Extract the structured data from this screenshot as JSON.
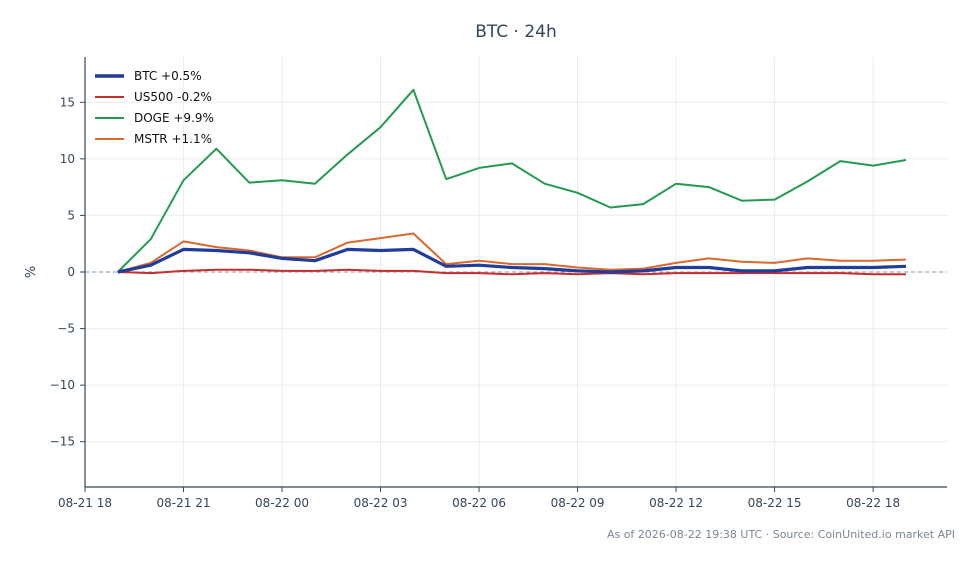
{
  "chart_data": {
    "type": "line",
    "title": "BTC · 24h",
    "xlabel": "",
    "ylabel": "%",
    "xlim": [
      "2026-08-21 18:00",
      "2026-08-22 20:15"
    ],
    "ylim": [
      -19,
      19
    ],
    "x_ticks": [
      "08-21 18",
      "08-21 21",
      "08-22 00",
      "08-22 03",
      "08-22 06",
      "08-22 09",
      "08-22 12",
      "08-22 15",
      "08-22 18"
    ],
    "y_ticks": [
      -15,
      -10,
      -5,
      0,
      5,
      10,
      15
    ],
    "grid": true,
    "zero_line": true,
    "legend_position": "top-left",
    "x": [
      "2026-08-21 19:00",
      "2026-08-21 20:00",
      "2026-08-21 21:00",
      "2026-08-21 22:00",
      "2026-08-21 23:00",
      "2026-08-22 00:00",
      "2026-08-22 01:00",
      "2026-08-22 02:00",
      "2026-08-22 03:00",
      "2026-08-22 04:00",
      "2026-08-22 05:00",
      "2026-08-22 06:00",
      "2026-08-22 07:00",
      "2026-08-22 08:00",
      "2026-08-22 09:00",
      "2026-08-22 10:00",
      "2026-08-22 11:00",
      "2026-08-22 12:00",
      "2026-08-22 13:00",
      "2026-08-22 14:00",
      "2026-08-22 15:00",
      "2026-08-22 16:00",
      "2026-08-22 17:00",
      "2026-08-22 18:00",
      "2026-08-22 19:00"
    ],
    "series": [
      {
        "name": "BTC +0.5%",
        "color": "#1f3d99",
        "values": [
          0.0,
          0.6,
          2.0,
          1.9,
          1.7,
          1.2,
          1.0,
          2.0,
          1.9,
          2.0,
          0.5,
          0.6,
          0.4,
          0.3,
          0.1,
          0.0,
          0.1,
          0.4,
          0.4,
          0.1,
          0.1,
          0.4,
          0.4,
          0.4,
          0.5
        ]
      },
      {
        "name": "US500 -0.2%",
        "color": "#c62d2d",
        "values": [
          0.0,
          -0.1,
          0.1,
          0.2,
          0.2,
          0.1,
          0.1,
          0.2,
          0.1,
          0.1,
          -0.1,
          -0.1,
          -0.2,
          -0.1,
          -0.2,
          -0.1,
          -0.2,
          -0.1,
          -0.1,
          -0.1,
          -0.1,
          -0.1,
          -0.1,
          -0.2,
          -0.2
        ]
      },
      {
        "name": "DOGE +9.9%",
        "color": "#239b4e",
        "values": [
          0.0,
          2.9,
          8.1,
          10.9,
          7.9,
          8.1,
          7.8,
          10.4,
          12.8,
          16.1,
          8.2,
          9.2,
          9.6,
          7.8,
          7.0,
          5.7,
          6.0,
          7.8,
          7.5,
          6.3,
          6.4,
          8.0,
          9.8,
          9.4,
          9.9
        ]
      },
      {
        "name": "MSTR +1.1%",
        "color": "#d9682e",
        "values": [
          0.0,
          0.8,
          2.7,
          2.2,
          1.9,
          1.3,
          1.3,
          2.6,
          3.0,
          3.4,
          0.7,
          1.0,
          0.7,
          0.7,
          0.4,
          0.2,
          0.3,
          0.8,
          1.2,
          0.9,
          0.8,
          1.2,
          1.0,
          1.0,
          1.1
        ]
      }
    ],
    "footnote": "As of 2026-08-22 19:38 UTC · Source: CoinUnited.io market API"
  }
}
